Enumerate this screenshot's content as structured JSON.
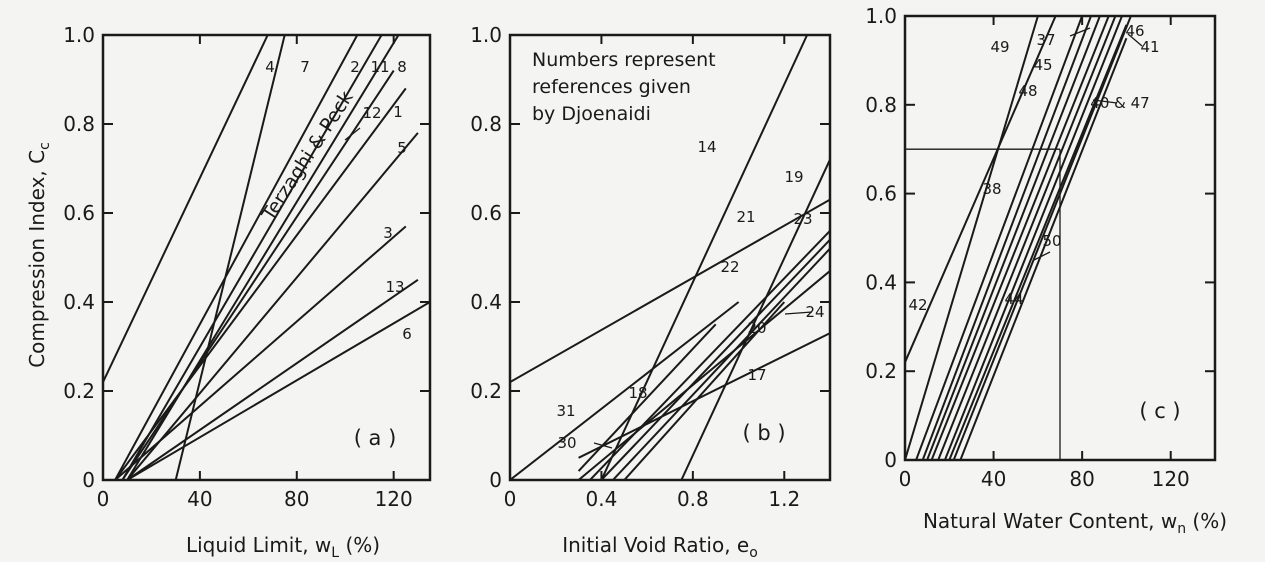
{
  "chart_data": [
    {
      "type": "line",
      "panel_label": "( a )",
      "xlabel": "Liquid Limit, w",
      "xlabel_sub": "L",
      "xlabel_tail": " (%)",
      "ylabel": "Compression Index, C",
      "ylabel_sub": "c",
      "xlim": [
        0,
        135
      ],
      "ylim": [
        0,
        1.0
      ],
      "x_ticks": [
        {
          "v": 0,
          "t": "0"
        },
        {
          "v": 40,
          "t": "40"
        },
        {
          "v": 80,
          "t": "80"
        },
        {
          "v": 120,
          "t": "120"
        }
      ],
      "y_ticks": [
        {
          "v": 0,
          "t": "0"
        },
        {
          "v": 0.2,
          "t": "0.2"
        },
        {
          "v": 0.4,
          "t": "0.4"
        },
        {
          "v": 0.6,
          "t": "0.6"
        },
        {
          "v": 0.8,
          "t": "0.8"
        },
        {
          "v": 1.0,
          "t": "1.0"
        }
      ],
      "series": [
        {
          "name": "4",
          "points": [
            [
              0,
              0.22
            ],
            [
              68,
              1.0
            ]
          ]
        },
        {
          "name": "7",
          "points": [
            [
              30,
              0
            ],
            [
              75,
              1.0
            ]
          ]
        },
        {
          "name": "2",
          "points": [
            [
              5,
              0
            ],
            [
              105,
              1.0
            ]
          ]
        },
        {
          "name": "11",
          "points": [
            [
              8,
              0
            ],
            [
              115,
              1.0
            ]
          ]
        },
        {
          "name": "8",
          "points": [
            [
              10,
              0
            ],
            [
              122,
              1.0
            ]
          ]
        },
        {
          "name": "12",
          "points": [
            [
              8,
              0
            ],
            [
              120,
              0.92
            ]
          ]
        },
        {
          "name": "1",
          "points": [
            [
              5,
              0
            ],
            [
              125,
              0.88
            ]
          ]
        },
        {
          "name": "5",
          "points": [
            [
              10,
              0
            ],
            [
              130,
              0.78
            ]
          ]
        },
        {
          "name": "3",
          "points": [
            [
              5,
              0
            ],
            [
              125,
              0.57
            ]
          ]
        },
        {
          "name": "13",
          "points": [
            [
              10,
              0
            ],
            [
              130,
              0.45
            ]
          ]
        },
        {
          "name": "6",
          "points": [
            [
              10,
              0
            ],
            [
              135,
              0.4
            ]
          ]
        }
      ],
      "annotations": [
        "Terzaghi & Peck"
      ]
    },
    {
      "type": "line",
      "panel_label": "( b )",
      "xlabel": "Initial Void Ratio, e",
      "xlabel_sub": "o",
      "xlabel_tail": "",
      "xlim": [
        0,
        1.4
      ],
      "ylim": [
        0,
        1.0
      ],
      "x_ticks": [
        {
          "v": 0,
          "t": "0"
        },
        {
          "v": 0.4,
          "t": "0.4"
        },
        {
          "v": 0.8,
          "t": "0.8"
        },
        {
          "v": 1.2,
          "t": "1.2"
        }
      ],
      "y_ticks": [
        {
          "v": 0,
          "t": "0"
        },
        {
          "v": 0.2,
          "t": "0.2"
        },
        {
          "v": 0.4,
          "t": "0.4"
        },
        {
          "v": 0.6,
          "t": "0.6"
        },
        {
          "v": 0.8,
          "t": "0.8"
        },
        {
          "v": 1.0,
          "t": "1.0"
        }
      ],
      "series": [
        {
          "name": "14",
          "points": [
            [
              0.4,
              0
            ],
            [
              1.3,
              1.0
            ]
          ]
        },
        {
          "name": "19",
          "points": [
            [
              0.75,
              0
            ],
            [
              1.4,
              0.72
            ]
          ]
        },
        {
          "name": "21",
          "points": [
            [
              0,
              0.22
            ],
            [
              1.4,
              0.63
            ]
          ]
        },
        {
          "name": "23",
          "points": [
            [
              0.35,
              0
            ],
            [
              1.4,
              0.56
            ]
          ]
        },
        {
          "name": "22",
          "points": [
            [
              0.4,
              0
            ],
            [
              1.4,
              0.54
            ]
          ]
        },
        {
          "name": "24",
          "points": [
            [
              0.45,
              0
            ],
            [
              1.4,
              0.52
            ]
          ]
        },
        {
          "name": "20",
          "points": [
            [
              0.3,
              0
            ],
            [
              1.4,
              0.47
            ]
          ]
        },
        {
          "name": "17",
          "points": [
            [
              0.3,
              0.05
            ],
            [
              1.4,
              0.33
            ]
          ]
        },
        {
          "name": "18",
          "points": [
            [
              0.3,
              0.02
            ],
            [
              0.9,
              0.35
            ]
          ]
        },
        {
          "name": "31",
          "points": [
            [
              0,
              0
            ],
            [
              1.0,
              0.4
            ]
          ]
        },
        {
          "name": "30",
          "points": [
            [
              0.5,
              0
            ],
            [
              1.2,
              0.4
            ]
          ]
        }
      ],
      "annotations": [
        "Numbers represent",
        "references given",
        "by Djoenaidi"
      ]
    },
    {
      "type": "line",
      "panel_label": "( c )",
      "xlabel": "Natural Water Content, w",
      "xlabel_sub": "n",
      "xlabel_tail": " (%)",
      "xlim": [
        0,
        140
      ],
      "ylim": [
        0,
        1.0
      ],
      "x_ticks": [
        {
          "v": 0,
          "t": "0"
        },
        {
          "v": 40,
          "t": "40"
        },
        {
          "v": 80,
          "t": "80"
        },
        {
          "v": 120,
          "t": "120"
        }
      ],
      "y_ticks": [
        {
          "v": 0,
          "t": "0"
        },
        {
          "v": 0.2,
          "t": "0.2"
        },
        {
          "v": 0.4,
          "t": "0.4"
        },
        {
          "v": 0.6,
          "t": "0.6"
        },
        {
          "v": 0.8,
          "t": "0.8"
        },
        {
          "v": 1.0,
          "t": "1.0"
        }
      ],
      "series": [
        {
          "name": "49",
          "points": [
            [
              0,
              0
            ],
            [
              60,
              1.0
            ]
          ]
        },
        {
          "name": "42",
          "points": [
            [
              0,
              0.22
            ],
            [
              68,
              1.0
            ]
          ]
        },
        {
          "name": "37",
          "points": [
            [
              5,
              0
            ],
            [
              80,
              1.0
            ]
          ]
        },
        {
          "name": "45",
          "points": [
            [
              8,
              0
            ],
            [
              84,
              1.0
            ]
          ]
        },
        {
          "name": "48",
          "points": [
            [
              10,
              0
            ],
            [
              88,
              1.0
            ]
          ]
        },
        {
          "name": "38",
          "points": [
            [
              12,
              0
            ],
            [
              92,
              1.0
            ]
          ]
        },
        {
          "name": "50",
          "points": [
            [
              15,
              0
            ],
            [
              95,
              1.0
            ]
          ]
        },
        {
          "name": "44",
          "points": [
            [
              18,
              0
            ],
            [
              98,
              1.0
            ]
          ]
        },
        {
          "name": "40 & 47",
          "points": [
            [
              20,
              0
            ],
            [
              100,
              0.98
            ]
          ]
        },
        {
          "name": "46",
          "points": [
            [
              22,
              0
            ],
            [
              102,
              1.0
            ]
          ]
        },
        {
          "name": "41",
          "points": [
            [
              25,
              0
            ],
            [
              100,
              0.95
            ]
          ]
        }
      ],
      "reference_lines": [
        {
          "points": [
            [
              0,
              0.7
            ],
            [
              70,
              0.7
            ]
          ]
        },
        {
          "points": [
            [
              70,
              0.7
            ],
            [
              70,
              0
            ]
          ]
        }
      ]
    }
  ]
}
